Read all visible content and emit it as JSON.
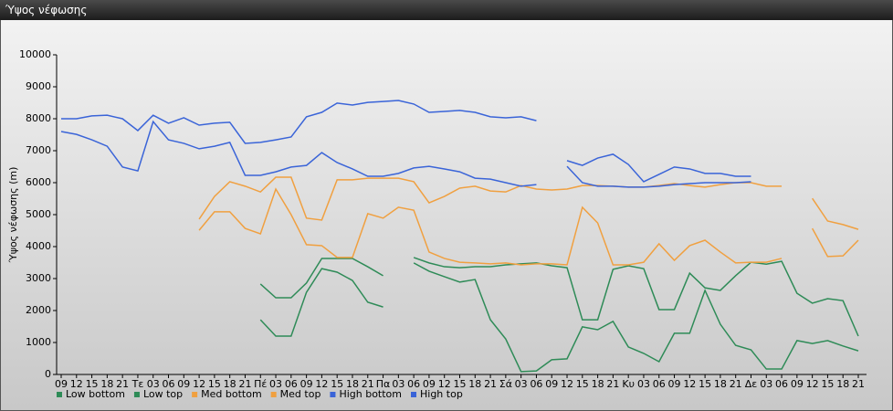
{
  "chart_data": {
    "type": "line",
    "title": "Ύψος νέφωσης",
    "y_label": "Ύψος νέφωσης (m)",
    "categories": [
      "09",
      "12",
      "15",
      "18",
      "21",
      "Τε",
      "03",
      "06",
      "09",
      "12",
      "15",
      "18",
      "21",
      "Πέ",
      "03",
      "06",
      "09",
      "12",
      "15",
      "18",
      "21",
      "Πα",
      "03",
      "06",
      "09",
      "12",
      "15",
      "18",
      "21",
      "Σά",
      "03",
      "06",
      "09",
      "12",
      "15",
      "18",
      "21",
      "Κυ",
      "03",
      "06",
      "09",
      "12",
      "15",
      "18",
      "21",
      "Δε",
      "03",
      "06",
      "09",
      "12",
      "15",
      "18",
      "21"
    ],
    "ylim": [
      0,
      10000
    ],
    "yticks": [
      0,
      1000,
      2000,
      3000,
      4000,
      5000,
      6000,
      7000,
      8000,
      9000,
      10000
    ],
    "grid": false,
    "series": [
      {
        "name": "Low bottom",
        "color": "#2e8b57",
        "values": [
          null,
          null,
          null,
          null,
          null,
          null,
          null,
          null,
          null,
          null,
          null,
          null,
          null,
          1710,
          1200,
          1200,
          2570,
          3310,
          3200,
          2940,
          2260,
          2110,
          null,
          3490,
          3230,
          3060,
          2890,
          2970,
          1710,
          1110,
          90,
          110,
          460,
          490,
          1490,
          1400,
          1660,
          860,
          660,
          400,
          1290,
          1290,
          2630,
          1570,
          910,
          770,
          170,
          170,
          1060,
          970,
          1060,
          890,
          740
        ]
      },
      {
        "name": "Low top",
        "color": "#2e8b57",
        "values": [
          null,
          null,
          null,
          null,
          null,
          null,
          null,
          null,
          null,
          null,
          null,
          null,
          null,
          2830,
          2400,
          2400,
          2860,
          3630,
          3630,
          3630,
          3370,
          3090,
          null,
          3660,
          3490,
          3370,
          3340,
          3370,
          3370,
          3430,
          3460,
          3490,
          3400,
          3340,
          1710,
          1710,
          3290,
          3400,
          3310,
          2030,
          2030,
          3170,
          2710,
          2630,
          3090,
          3510,
          3450,
          3540,
          2540,
          2230,
          2370,
          2310,
          1200
        ]
      },
      {
        "name": "Med bottom",
        "color": "#f0a040",
        "values": [
          null,
          null,
          null,
          null,
          null,
          null,
          null,
          null,
          null,
          4510,
          5090,
          5090,
          4570,
          4400,
          5800,
          5000,
          4060,
          4030,
          3660,
          3660,
          5030,
          4890,
          5230,
          5140,
          3830,
          3630,
          3510,
          3490,
          3460,
          3490,
          3430,
          3460,
          3460,
          3430,
          5230,
          4740,
          3430,
          3430,
          3510,
          4090,
          3570,
          4030,
          4200,
          3830,
          3490,
          3510,
          3510,
          3630,
          null,
          4570,
          3690,
          3710,
          4200
        ]
      },
      {
        "name": "Med top",
        "color": "#f0a040",
        "values": [
          null,
          null,
          null,
          null,
          null,
          null,
          null,
          null,
          null,
          4860,
          5570,
          6030,
          5890,
          5710,
          6170,
          6170,
          4890,
          4830,
          6090,
          6090,
          6140,
          6140,
          6140,
          6030,
          5370,
          5570,
          5830,
          5890,
          5740,
          5710,
          5910,
          5800,
          5770,
          5800,
          5910,
          5910,
          5890,
          5860,
          5860,
          5910,
          5970,
          5910,
          5860,
          5940,
          6000,
          6000,
          5890,
          5890,
          null,
          5510,
          4800,
          4690,
          4540
        ]
      },
      {
        "name": "High bottom",
        "color": "#3a64d8",
        "values": [
          7600,
          7510,
          7340,
          7140,
          6490,
          6370,
          7910,
          7340,
          7230,
          7060,
          7140,
          7260,
          6230,
          6230,
          6340,
          6490,
          6540,
          6940,
          6630,
          6430,
          6200,
          6200,
          6290,
          6460,
          6510,
          6430,
          6340,
          6140,
          6110,
          6000,
          5890,
          5940,
          null,
          6510,
          6000,
          5890,
          5890,
          5860,
          5860,
          5890,
          5940,
          5970,
          6000,
          6000,
          6000,
          6030,
          null,
          null,
          null,
          null,
          null,
          null,
          null
        ]
      },
      {
        "name": "High top",
        "color": "#3a64d8",
        "values": [
          8000,
          8000,
          8090,
          8110,
          8000,
          7630,
          8110,
          7860,
          8030,
          7800,
          7860,
          7890,
          7230,
          7260,
          7340,
          7430,
          8060,
          8200,
          8490,
          8430,
          8510,
          8540,
          8570,
          8460,
          8200,
          8230,
          8260,
          8200,
          8060,
          8030,
          8060,
          7940,
          null,
          6690,
          6540,
          6770,
          6890,
          6570,
          6030,
          6260,
          6490,
          6430,
          6290,
          6290,
          6200,
          6200,
          null,
          null,
          null,
          null,
          null,
          null,
          null
        ]
      }
    ]
  }
}
